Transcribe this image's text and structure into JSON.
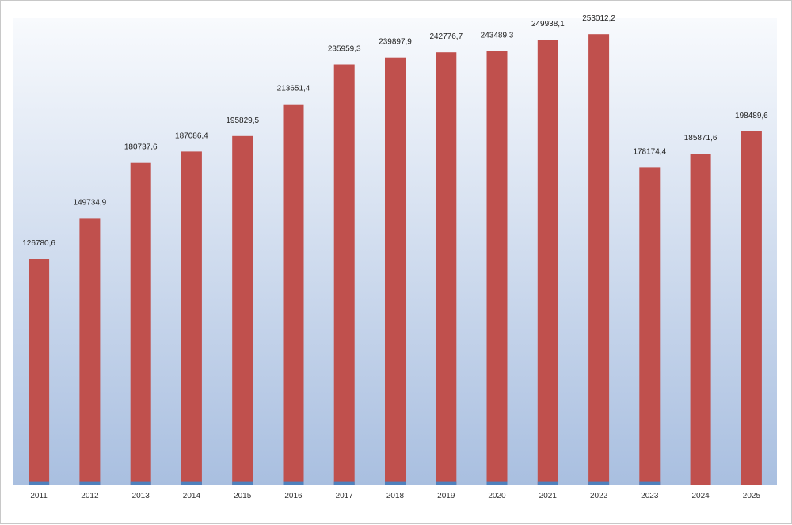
{
  "colors": {
    "plot_top": "#f8fafd",
    "plot_bottom": "#a9bfe0",
    "bar": "#c0504d",
    "base": "#4f81bd"
  },
  "chart_data": {
    "type": "bar",
    "title": "",
    "xlabel": "",
    "ylabel": "",
    "ylim": [
      0,
      262000
    ],
    "grid": false,
    "categories": [
      "2011",
      "2012",
      "2013",
      "2014",
      "2015",
      "2016",
      "2017",
      "2018",
      "2019",
      "2020",
      "2021",
      "2022",
      "2023",
      "2024",
      "2025"
    ],
    "series": [
      {
        "values": [
          126780.6,
          149734.9,
          180737.6,
          187086.4,
          195829.5,
          213651.4,
          235959.3,
          239897.9,
          242776.7,
          243489.3,
          249938.1,
          253012.2,
          178174.4,
          185871.6,
          198489.6
        ],
        "labels": [
          "126780,6",
          "149734,9",
          "180737,6",
          "187086,4",
          "195829,5",
          "213651,4",
          "235959,3",
          "239897,9",
          "242776,7",
          "243489,3",
          "249938,1",
          "253012,2",
          "178174,4",
          "185871,6",
          "198489,6"
        ]
      },
      {
        "values": [
          1500,
          1500,
          1500,
          1500,
          1500,
          1500,
          1500,
          1500,
          1500,
          1500,
          1500,
          1500,
          1500,
          0,
          0
        ]
      }
    ]
  }
}
